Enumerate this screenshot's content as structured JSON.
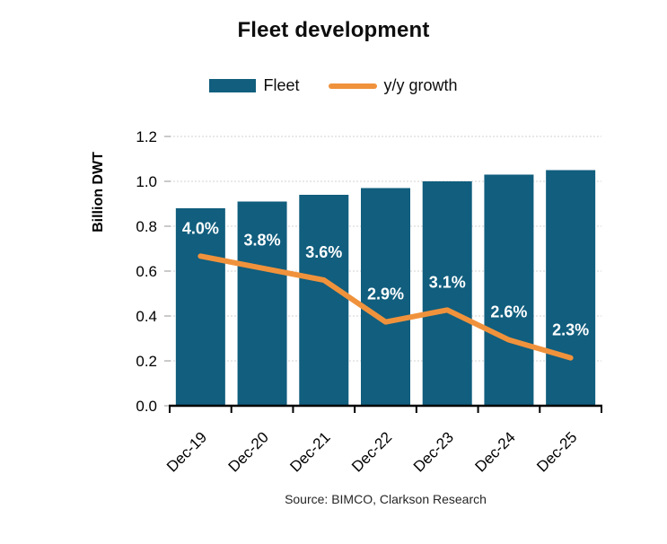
{
  "title": "Fleet development",
  "legend": [
    {
      "label": "Fleet",
      "swatch": "bar-swatch"
    },
    {
      "label": "y/y growth",
      "swatch": "line-swatch"
    }
  ],
  "source": "Source: BIMCO, Clarkson Research",
  "colors": {
    "bar": "#115e7e",
    "line": "#f0923c",
    "grid": "#d9d9d9",
    "axis": "#000000",
    "y_tick": "#a6a6a6",
    "data_label": "#ffffff"
  },
  "chart_data": {
    "type": "bar+line",
    "title": "Fleet development",
    "xlabel": "",
    "ylabel": "Billion DWT",
    "categories": [
      "Dec-19",
      "Dec-20",
      "Dec-21",
      "Dec-22",
      "Dec-23",
      "Dec-24",
      "Dec-25"
    ],
    "series": [
      {
        "name": "Fleet",
        "type": "bar",
        "axis": "left",
        "unit": "billion DWT",
        "values": [
          0.88,
          0.91,
          0.94,
          0.97,
          1.0,
          1.03,
          1.05
        ]
      },
      {
        "name": "y/y growth",
        "type": "line",
        "axis": "hidden-right",
        "unit": "%",
        "values": [
          4.0,
          3.8,
          3.6,
          2.9,
          3.1,
          2.6,
          2.3
        ],
        "labels": [
          "4.0%",
          "3.8%",
          "3.6%",
          "2.9%",
          "3.1%",
          "2.6%",
          "2.3%"
        ]
      }
    ],
    "ylim": [
      0,
      1.2
    ],
    "y_ticks": [
      0.0,
      0.2,
      0.4,
      0.6,
      0.8,
      1.0,
      1.2
    ],
    "hidden_line_axis_range": [
      1.5,
      6.0
    ],
    "grid": true,
    "legend_position": "top",
    "source": "Source: BIMCO, Clarkson Research"
  }
}
